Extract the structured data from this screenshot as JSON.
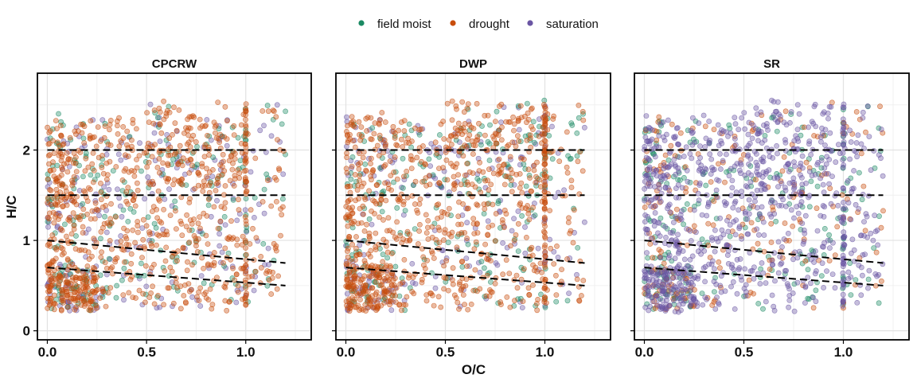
{
  "chart_data": {
    "type": "scatter",
    "xlabel": "O/C",
    "ylabel": "H/C",
    "xlim": [
      -0.05,
      1.33
    ],
    "ylim": [
      -0.1,
      2.85
    ],
    "x_ticks": [
      0.0,
      0.5,
      1.0
    ],
    "x_tick_labels": [
      "0.0",
      "0.5",
      "1.0"
    ],
    "y_ticks": [
      0,
      1,
      2
    ],
    "y_tick_labels": [
      "0",
      "1",
      "2"
    ],
    "grid": true,
    "legend_position": "top",
    "legend": [
      {
        "label": "field moist",
        "color": "#1b8a63"
      },
      {
        "label": "drought",
        "color": "#c84d0c"
      },
      {
        "label": "saturation",
        "color": "#6a55a3"
      }
    ],
    "reference_lines": [
      {
        "x": [
          0,
          1.2
        ],
        "y": [
          2.0,
          2.0
        ]
      },
      {
        "x": [
          0,
          1.2
        ],
        "y": [
          1.5,
          1.5
        ]
      },
      {
        "x": [
          0,
          1.2
        ],
        "y": [
          1.0,
          0.75
        ]
      },
      {
        "x": [
          0,
          1.2
        ],
        "y": [
          0.7,
          0.5
        ]
      }
    ],
    "panels": [
      {
        "title": "CPCRW",
        "dominant_series": "drought",
        "order": [
          "saturation",
          "field moist",
          "drought"
        ]
      },
      {
        "title": "DWP",
        "dominant_series": "drought",
        "order": [
          "saturation",
          "field moist",
          "drought"
        ]
      },
      {
        "title": "SR",
        "dominant_series": "saturation",
        "order": [
          "field moist",
          "drought",
          "saturation"
        ]
      }
    ]
  }
}
